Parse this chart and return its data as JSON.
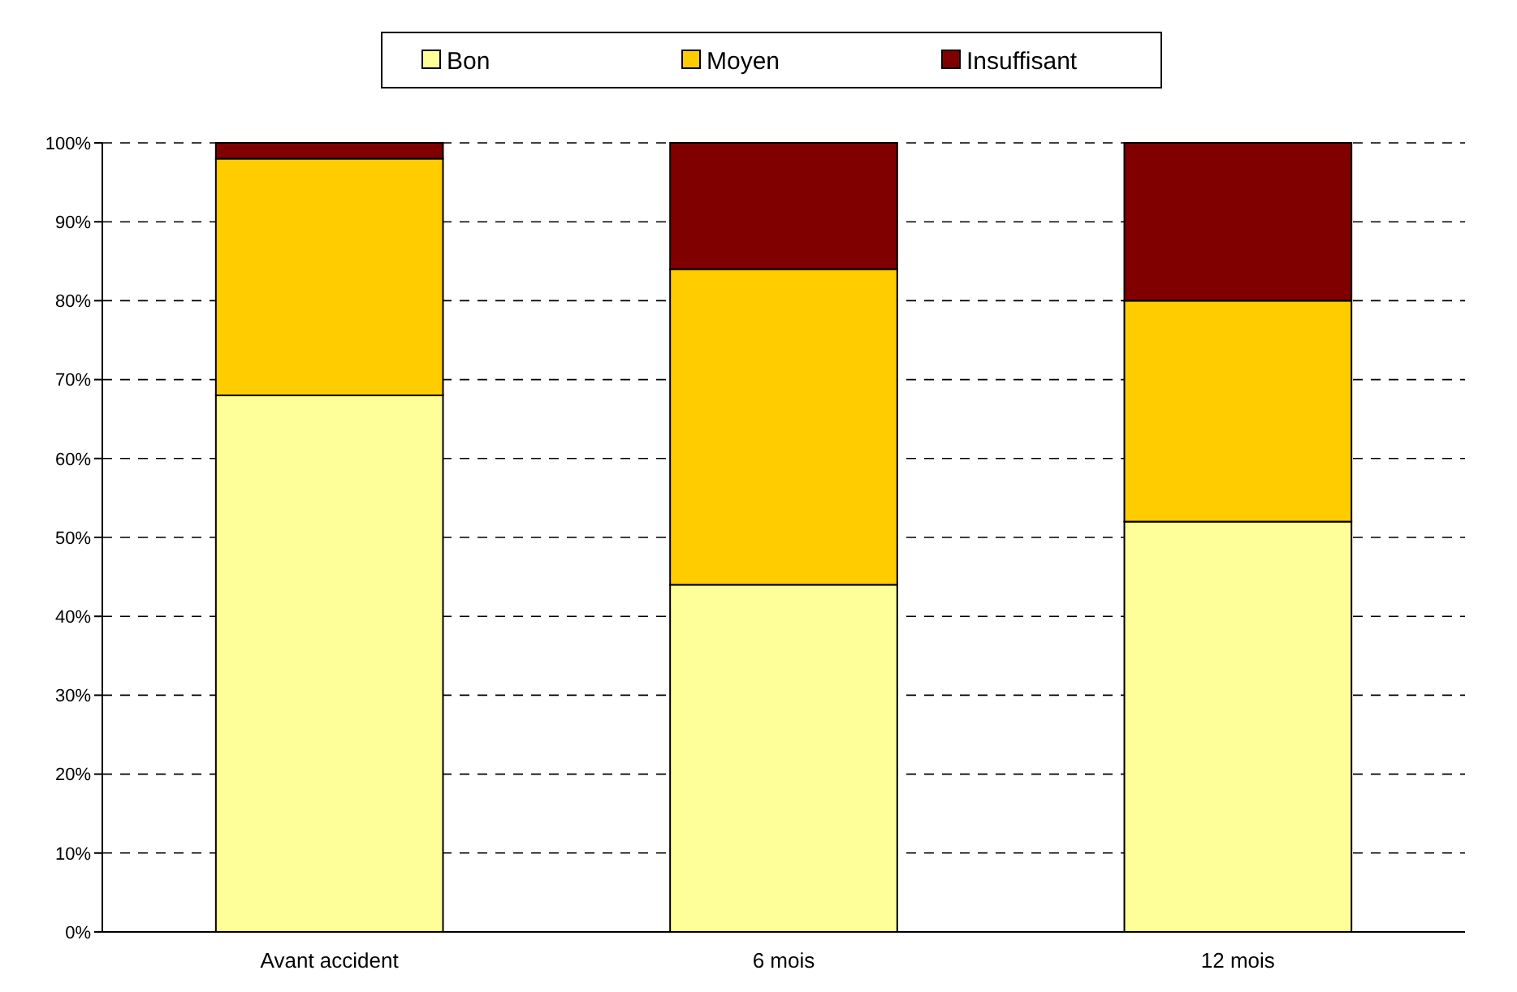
{
  "chart_data": {
    "type": "bar",
    "stacked": true,
    "categories": [
      "Avant accident",
      "6 mois",
      "12 mois"
    ],
    "series": [
      {
        "name": "Bon",
        "color": "#ffff99",
        "values": [
          68,
          44,
          52
        ]
      },
      {
        "name": "Moyen",
        "color": "#ffcc00",
        "values": [
          30,
          40,
          28
        ]
      },
      {
        "name": "Insuffisant",
        "color": "#800000",
        "values": [
          2,
          16,
          20
        ]
      }
    ],
    "ylim": [
      0,
      100
    ],
    "yticks": [
      {
        "value": 0,
        "label": "0%"
      },
      {
        "value": 10,
        "label": "10%"
      },
      {
        "value": 20,
        "label": "20%"
      },
      {
        "value": 30,
        "label": "30%"
      },
      {
        "value": 40,
        "label": "40%"
      },
      {
        "value": 50,
        "label": "50%"
      },
      {
        "value": 60,
        "label": "60%"
      },
      {
        "value": 70,
        "label": "70%"
      },
      {
        "value": 80,
        "label": "80%"
      },
      {
        "value": 90,
        "label": "90%"
      },
      {
        "value": 100,
        "label": "100%"
      }
    ],
    "grid": "y",
    "legend": "top"
  }
}
